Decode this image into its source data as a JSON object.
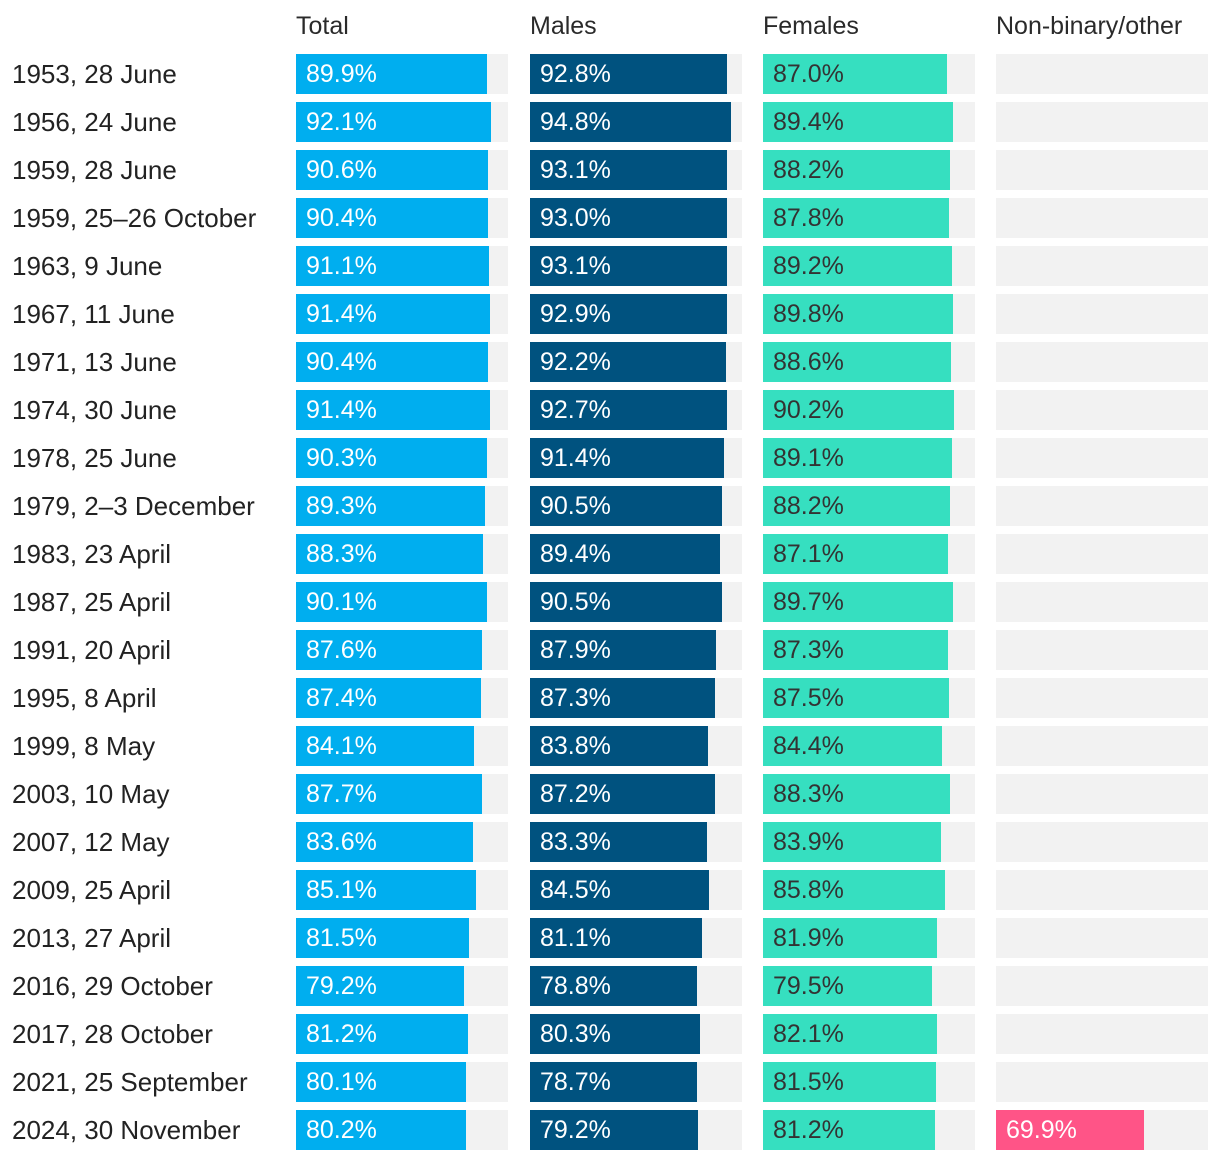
{
  "chart_data": {
    "type": "bar",
    "orientation": "horizontal",
    "value_format": "percent",
    "xlim": [
      0,
      100
    ],
    "columns": [
      {
        "key": "total",
        "name": "Total",
        "color": "#00aeef",
        "label_color": "#ffffff"
      },
      {
        "key": "males",
        "name": "Males",
        "color": "#00527f",
        "label_color": "#ffffff"
      },
      {
        "key": "females",
        "name": "Females",
        "color": "#36dfc0",
        "label_color": "#333333"
      },
      {
        "key": "nonbinary",
        "name": "Non-binary/other",
        "color": "#ff5487",
        "label_color": "#ffffff"
      }
    ],
    "categories": [
      "1953, 28 June",
      "1956, 24 June",
      "1959, 28 June",
      "1959, 25–26 October",
      "1963, 9 June",
      "1967, 11 June",
      "1971, 13 June",
      "1974, 30 June",
      "1978, 25 June",
      "1979, 2–3 December",
      "1983, 23 April",
      "1987, 25 April",
      "1991, 20 April",
      "1995, 8 April",
      "1999, 8 May",
      "2003, 10 May",
      "2007, 12 May",
      "2009, 25 April",
      "2013, 27 April",
      "2016, 29 October",
      "2017, 28 October",
      "2021, 25 September",
      "2024, 30 November"
    ],
    "series": [
      {
        "key": "total",
        "name": "Total",
        "values": [
          89.9,
          92.1,
          90.6,
          90.4,
          91.1,
          91.4,
          90.4,
          91.4,
          90.3,
          89.3,
          88.3,
          90.1,
          87.6,
          87.4,
          84.1,
          87.7,
          83.6,
          85.1,
          81.5,
          79.2,
          81.2,
          80.1,
          80.2
        ]
      },
      {
        "key": "males",
        "name": "Males",
        "values": [
          92.8,
          94.8,
          93.1,
          93.0,
          93.1,
          92.9,
          92.2,
          92.7,
          91.4,
          90.5,
          89.4,
          90.5,
          87.9,
          87.3,
          83.8,
          87.2,
          83.3,
          84.5,
          81.1,
          78.8,
          80.3,
          78.7,
          79.2
        ]
      },
      {
        "key": "females",
        "name": "Females",
        "values": [
          87.0,
          89.4,
          88.2,
          87.8,
          89.2,
          89.8,
          88.6,
          90.2,
          89.1,
          88.2,
          87.1,
          89.7,
          87.3,
          87.5,
          84.4,
          88.3,
          83.9,
          85.8,
          81.9,
          79.5,
          82.1,
          81.5,
          81.2
        ]
      },
      {
        "key": "nonbinary",
        "name": "Non-binary/other",
        "values": [
          null,
          null,
          null,
          null,
          null,
          null,
          null,
          null,
          null,
          null,
          null,
          null,
          null,
          null,
          null,
          null,
          null,
          null,
          null,
          null,
          null,
          null,
          69.9
        ]
      }
    ]
  }
}
